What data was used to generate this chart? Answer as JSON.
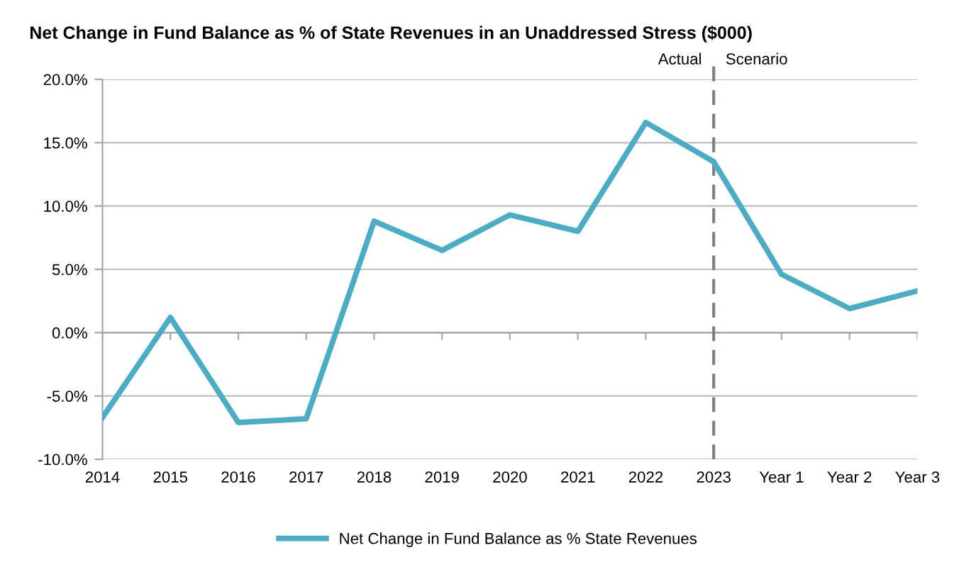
{
  "chart_data": {
    "type": "line",
    "title": "Net Change in Fund Balance as % of State Revenues in an Unaddressed Stress ($000)",
    "categories": [
      "2014",
      "2015",
      "2016",
      "2017",
      "2018",
      "2019",
      "2020",
      "2021",
      "2022",
      "2023",
      "Year 1",
      "Year 2",
      "Year 3"
    ],
    "series": [
      {
        "name": "Net Change in Fund Balance as % State Revenues",
        "color": "#4bacc6",
        "values": [
          -6.7,
          1.2,
          -7.1,
          -6.8,
          8.8,
          6.5,
          9.3,
          8.0,
          16.6,
          13.5,
          4.6,
          1.9,
          3.3
        ]
      }
    ],
    "ylim": [
      -10,
      20
    ],
    "yticks": [
      {
        "value": -10,
        "label": "-10.0%"
      },
      {
        "value": -5,
        "label": "-5.0%"
      },
      {
        "value": 0,
        "label": "0.0%"
      },
      {
        "value": 5,
        "label": "5.0%"
      },
      {
        "value": 10,
        "label": "10.0%"
      },
      {
        "value": 15,
        "label": "15.0%"
      },
      {
        "value": 20,
        "label": "20.0%"
      }
    ],
    "ref_lines": [
      {
        "axis": "x",
        "value": "2023",
        "color": "#7f7f7f",
        "line_style": "dashed"
      }
    ],
    "annotations": [
      "Actual",
      "Scenario"
    ],
    "grid": "y",
    "legend": "bottom",
    "marker": "none",
    "line_style": "solid"
  }
}
